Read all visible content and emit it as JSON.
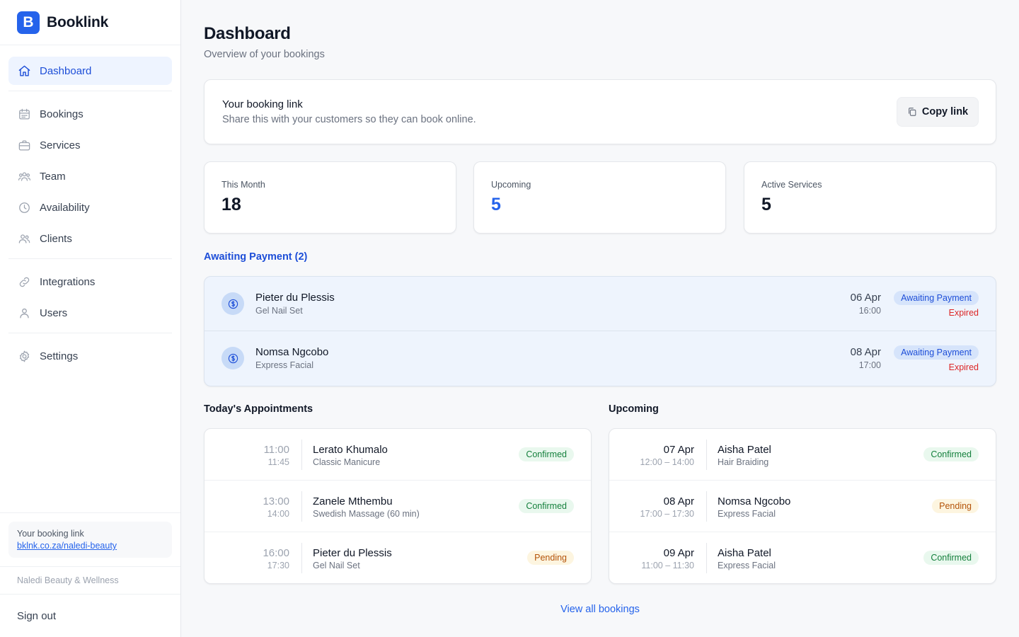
{
  "app": {
    "name": "Booklink",
    "logo_letter": "B",
    "accent": "#2563eb"
  },
  "sidebar": {
    "items": [
      {
        "label": "Dashboard",
        "icon": "home-icon",
        "active": true
      },
      {
        "label": "Bookings",
        "icon": "calendar-icon"
      },
      {
        "label": "Services",
        "icon": "briefcase-icon"
      },
      {
        "label": "Team",
        "icon": "team-icon"
      },
      {
        "label": "Availability",
        "icon": "clock-icon"
      },
      {
        "label": "Clients",
        "icon": "users-icon"
      },
      {
        "label": "Integrations",
        "icon": "link-icon"
      },
      {
        "label": "Users",
        "icon": "user-icon"
      },
      {
        "label": "Settings",
        "icon": "gear-icon"
      }
    ],
    "footer": {
      "link_title": "Your booking link",
      "link_url": "bklnk.co.za/naledi-beauty",
      "business": "Naledi Beauty & Wellness",
      "sign_out": "Sign out"
    }
  },
  "header": {
    "title": "Dashboard",
    "subtitle": "Overview of your bookings"
  },
  "booking_link": {
    "title": "Your booking link",
    "subtitle": "Share this with your customers so they can book online.",
    "button": "Copy link"
  },
  "stats": [
    {
      "label": "This Month",
      "value": "18"
    },
    {
      "label": "Upcoming",
      "value": "5"
    },
    {
      "label": "Active Services",
      "value": "5"
    }
  ],
  "awaiting": {
    "title": "Awaiting Payment (2)",
    "rows": [
      {
        "name": "Pieter du Plessis",
        "service": "Gel Nail Set",
        "date": "06 Apr",
        "time": "16:00",
        "badge": "Awaiting Payment",
        "note": "Expired"
      },
      {
        "name": "Nomsa Ngcobo",
        "service": "Express Facial",
        "date": "08 Apr",
        "time": "17:00",
        "badge": "Awaiting Payment",
        "note": "Expired"
      }
    ]
  },
  "today": {
    "title": "Today's Appointments",
    "rows": [
      {
        "start": "11:00",
        "end": "11:45",
        "name": "Lerato Khumalo",
        "service": "Classic Manicure",
        "status": "Confirmed"
      },
      {
        "start": "13:00",
        "end": "14:00",
        "name": "Zanele Mthembu",
        "service": "Swedish Massage (60 min)",
        "status": "Confirmed"
      },
      {
        "start": "16:00",
        "end": "17:30",
        "name": "Pieter du Plessis",
        "service": "Gel Nail Set",
        "status": "Pending"
      }
    ]
  },
  "upcoming": {
    "title": "Upcoming",
    "rows": [
      {
        "date": "07 Apr",
        "range": "12:00 – 14:00",
        "name": "Aisha Patel",
        "service": "Hair Braiding",
        "status": "Confirmed"
      },
      {
        "date": "08 Apr",
        "range": "17:00 – 17:30",
        "name": "Nomsa Ngcobo",
        "service": "Express Facial",
        "status": "Pending"
      },
      {
        "date": "09 Apr",
        "range": "11:00 – 11:30",
        "name": "Aisha Patel",
        "service": "Express Facial",
        "status": "Confirmed"
      }
    ]
  },
  "view_all": "View all bookings"
}
